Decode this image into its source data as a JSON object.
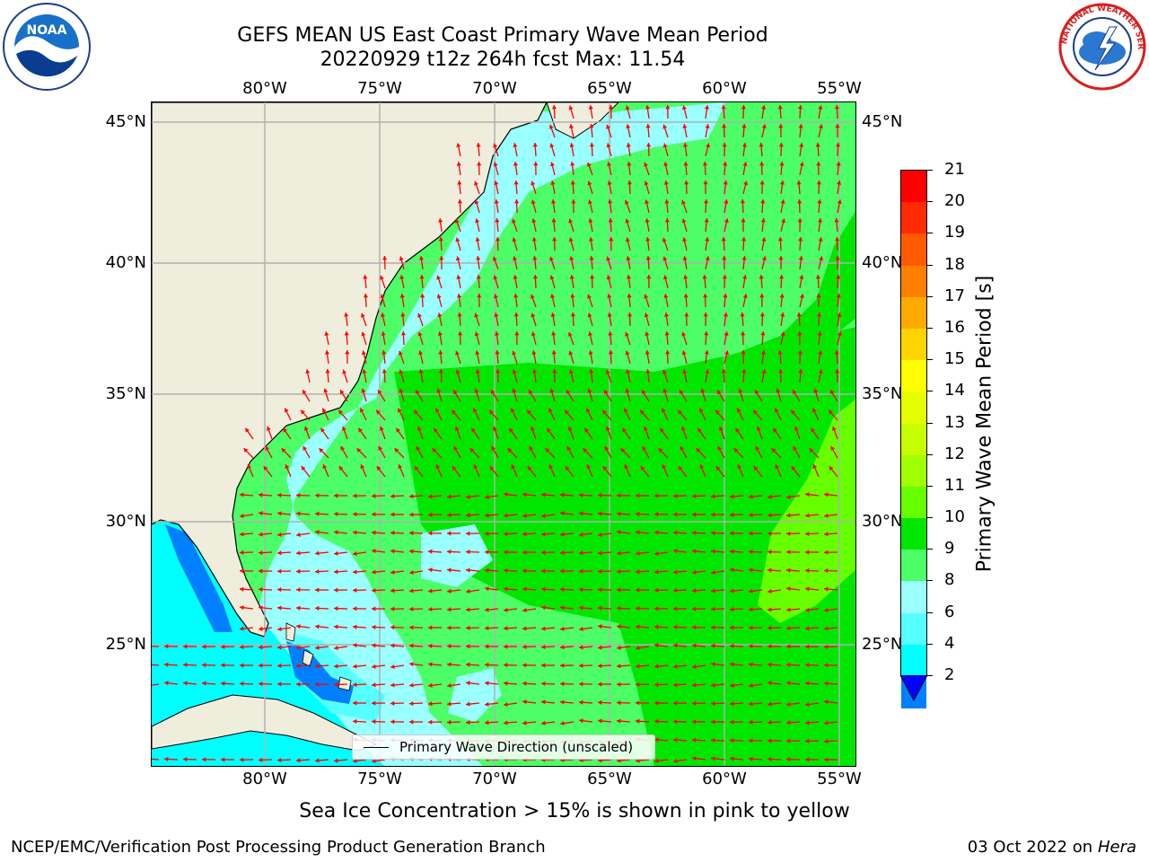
{
  "title": {
    "line1": "GEFS MEAN US East Coast Primary Wave Mean Period",
    "line2": "20220929 t12z 264h fcst   Max: 11.54"
  },
  "logos": {
    "left": "noara-logo",
    "left_text": "NOAA",
    "right": "nws-logo",
    "right_text": "NATIONAL WEATHER SERVICE"
  },
  "axes": {
    "lon_labels": [
      "80°W",
      "75°W",
      "70°W",
      "65°W",
      "60°W",
      "55°W"
    ],
    "lat_labels": [
      "45°N",
      "40°N",
      "35°N",
      "30°N",
      "25°N"
    ]
  },
  "colorbar": {
    "label": "Primary Wave Mean Period [s]",
    "ticks": [
      "21",
      "20",
      "19",
      "18",
      "17",
      "16",
      "15",
      "14",
      "13",
      "12",
      "11",
      "10",
      "9",
      "8",
      "6",
      "4",
      "2"
    ],
    "colors": [
      "#ff0000",
      "#ff2a00",
      "#ff5a00",
      "#ff8000",
      "#ffaa00",
      "#ffd400",
      "#ffff00",
      "#e6ff00",
      "#c8ff00",
      "#a0ff00",
      "#66ff00",
      "#00e600",
      "#4cff66",
      "#99ffff",
      "#55ffff",
      "#00ffff",
      "#0080ff"
    ],
    "extend_color": "#0000ff"
  },
  "legend": {
    "label": "Primary Wave Direction (unscaled)"
  },
  "footnote": "Sea Ice Concentration > 15% is shown in pink to yellow",
  "credits": {
    "left": "NCEP/EMC/Verification Post Processing Product Generation Branch",
    "right_date": "03 Oct 2022 on ",
    "right_host": "Hera"
  },
  "colors": {
    "land": "#efeddc",
    "grid": "#b0b0b0",
    "arrow": "#ff0000"
  }
}
